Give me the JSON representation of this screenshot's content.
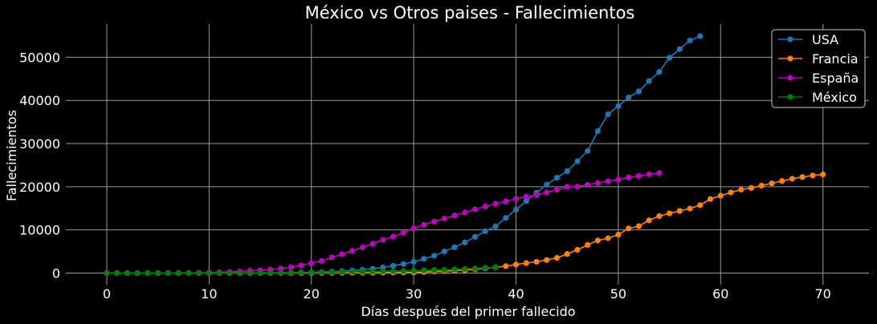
{
  "chart_data": {
    "type": "line",
    "title": "México vs Otros paises - Fallecimientos",
    "xlabel": "Días después del primer fallecido",
    "ylabel": "Fallecimientos",
    "xlim": [
      -4,
      74.5
    ],
    "ylim": [
      -2700,
      57700
    ],
    "xticks": [
      0,
      10,
      20,
      30,
      40,
      50,
      60,
      70
    ],
    "yticks": [
      0,
      10000,
      20000,
      30000,
      40000,
      50000
    ],
    "grid": true,
    "legend_position": "top-right",
    "series": [
      {
        "name": "USA",
        "color": "#1f77b4",
        "values": [
          1,
          1,
          1,
          6,
          9,
          11,
          12,
          15,
          19,
          22,
          26,
          30,
          38,
          41,
          48,
          57,
          69,
          85,
          108,
          150,
          200,
          260,
          340,
          470,
          600,
          780,
          1000,
          1300,
          1700,
          2100,
          2600,
          3300,
          4000,
          5000,
          6000,
          7100,
          8400,
          9700,
          10800,
          12800,
          14700,
          16700,
          18600,
          20500,
          22100,
          23600,
          25900,
          28300,
          32900,
          36800,
          38700,
          40700,
          42100,
          44500,
          46600,
          49900,
          51900,
          53900,
          54900
        ]
      },
      {
        "name": "Francia",
        "color": "#ff7f0e",
        "values": [
          1,
          1,
          1,
          1,
          1,
          1,
          1,
          1,
          1,
          1,
          2,
          2,
          2,
          2,
          2,
          2,
          3,
          4,
          7,
          9,
          11,
          19,
          22,
          30,
          48,
          61,
          79,
          91,
          127,
          148,
          175,
          244,
          372,
          450,
          562,
          674,
          860,
          1100,
          1331,
          1600,
          1975,
          2314,
          2606,
          3024,
          3523,
          4403,
          5387,
          6507,
          7560,
          8078,
          8911,
          10328,
          10869,
          12210,
          13197,
          13832,
          14393,
          14967,
          15729,
          17167,
          17920,
          18681,
          19323,
          19718,
          20265,
          20796,
          21340,
          21856,
          22245,
          22614,
          22856
        ]
      },
      {
        "name": "España",
        "color": "#c000c0",
        "values": [
          1,
          2,
          3,
          5,
          10,
          17,
          28,
          35,
          54,
          55,
          133,
          195,
          289,
          342,
          533,
          623,
          830,
          1043,
          1375,
          1772,
          2311,
          2808,
          3647,
          4365,
          5138,
          5982,
          6803,
          7716,
          8464,
          9387,
          10348,
          11198,
          11947,
          12641,
          13341,
          14045,
          14792,
          15447,
          16081,
          16606,
          17209,
          17756,
          18056,
          18708,
          19315,
          20002,
          20043,
          20453,
          20852,
          21282,
          21717,
          22157,
          22524,
          22902,
          23190
        ]
      },
      {
        "name": "México",
        "color": "#008000",
        "values": [
          1,
          2,
          2,
          2,
          3,
          4,
          5,
          6,
          8,
          12,
          16,
          20,
          28,
          29,
          37,
          50,
          60,
          79,
          94,
          125,
          141,
          174,
          194,
          233,
          273,
          296,
          332,
          406,
          449,
          486,
          546,
          650,
          686,
          712,
          857,
          970,
          1069,
          1221,
          1305
        ]
      }
    ]
  }
}
